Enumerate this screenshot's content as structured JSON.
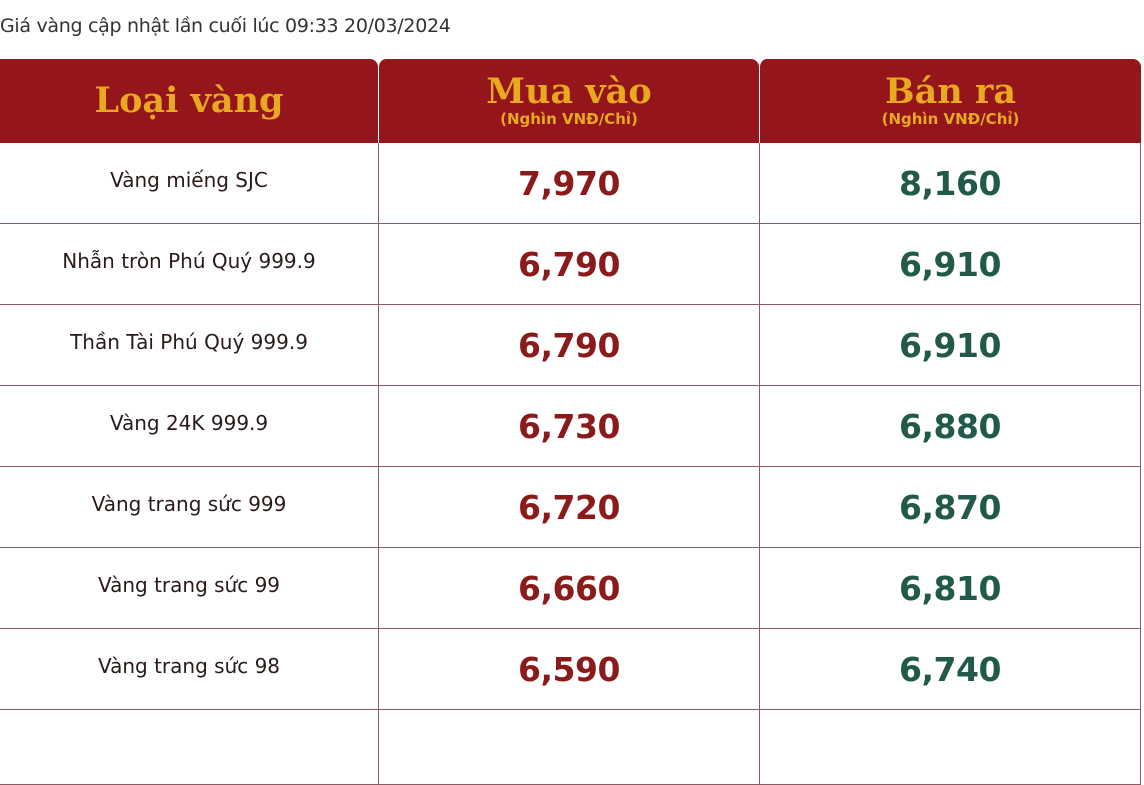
{
  "update_text": "Giá vàng cập nhật lần cuối lúc 09:33 20/03/2024",
  "colors": {
    "header_bg": "#95161a",
    "header_text": "#e8a820",
    "buy": "#8b1a1a",
    "sell": "#215a4a"
  },
  "table": {
    "headers": [
      {
        "title": "Loại vàng",
        "sub": ""
      },
      {
        "title": "Mua vào",
        "sub": "(Nghìn VNĐ/Chỉ)"
      },
      {
        "title": "Bán ra",
        "sub": "(Nghìn VNĐ/Chỉ)"
      }
    ],
    "rows": [
      {
        "name": "Vàng miếng SJC",
        "buy": "7,970",
        "sell": "8,160"
      },
      {
        "name": "Nhẫn tròn Phú Quý 999.9",
        "buy": "6,790",
        "sell": "6,910"
      },
      {
        "name": "Thần Tài Phú Quý 999.9",
        "buy": "6,790",
        "sell": "6,910"
      },
      {
        "name": "Vàng 24K 999.9",
        "buy": "6,730",
        "sell": "6,880"
      },
      {
        "name": "Vàng trang sức 999",
        "buy": "6,720",
        "sell": "6,870"
      },
      {
        "name": "Vàng trang sức 99",
        "buy": "6,660",
        "sell": "6,810"
      },
      {
        "name": "Vàng trang sức 98",
        "buy": "6,590",
        "sell": "6,740"
      }
    ]
  }
}
